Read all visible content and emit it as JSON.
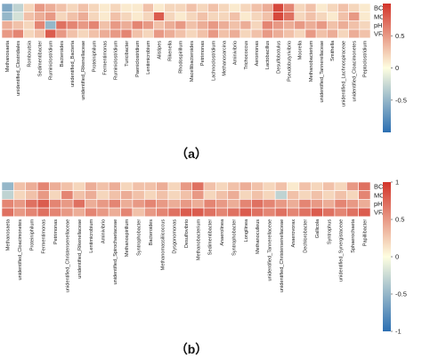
{
  "panels": [
    {
      "label": "（a）",
      "chart_data": {
        "type": "heatmap",
        "title": "",
        "xlabel": "",
        "ylabel": "",
        "rows": [
          "BC",
          "MC",
          "pH",
          "VFA"
        ],
        "columns": [
          "Methanosaeta",
          "unidentified_Clostridiales",
          "Romboutsia",
          "Sedimentibacter",
          "Ruminiclostridium",
          "Bacteroides",
          "unidentified_Bacteria",
          "unidentified_Rikenellaceae",
          "Proteiniphilum",
          "Fermentimonas",
          "Ruminiclostridium",
          "Turicibacter",
          "Paeniclostridium",
          "Lentimicrobium",
          "Alistipes",
          "Rikenella",
          "Rhodospirillum",
          "Macellibacteroides",
          "Petrimonas",
          "Lachnoclostridium",
          "Methanosarcina",
          "Aminivibrio",
          "Trichococcus",
          "Aeromonas",
          "Lactobacillus",
          "Desulfobotulus",
          "Pseudobutyrivibrio",
          "Moorella",
          "Methanobacterium",
          "unidentified_Tannerellaceae",
          "Smithella",
          "unidentified_Lachnospiraceae",
          "unidentified_Cloacimonetes",
          "Peptoclostridium"
        ],
        "values": [
          [
            -0.6,
            -0.3,
            0.2,
            0.5,
            0.4,
            0.3,
            0.2,
            0.3,
            0.2,
            0.1,
            0.2,
            0.1,
            0.1,
            0.3,
            0.1,
            0.2,
            0.2,
            0.3,
            0.2,
            0.3,
            0.2,
            0.1,
            0.2,
            0.3,
            0.4,
            0.9,
            0.6,
            0.2,
            0.3,
            0.1,
            0.2,
            0.3,
            0.2,
            0.1
          ],
          [
            -0.5,
            -0.2,
            0.3,
            0.4,
            0.5,
            0.2,
            0.3,
            0.4,
            0.2,
            0.1,
            0.3,
            0.2,
            0.1,
            0.2,
            0.8,
            0.2,
            0.1,
            0.2,
            0.3,
            0.2,
            0.2,
            0.3,
            0.1,
            0.2,
            0.3,
            0.9,
            0.7,
            0.2,
            0.3,
            0.2,
            0.1,
            0.3,
            0.5,
            0.1
          ],
          [
            0.4,
            0.3,
            0.2,
            0.6,
            -0.5,
            0.7,
            0.6,
            0.5,
            0.6,
            0.3,
            0.5,
            0.4,
            0.6,
            0.5,
            0.3,
            0.4,
            0.5,
            0.3,
            0.4,
            0.5,
            0.4,
            0.3,
            0.4,
            0.2,
            0.6,
            0.5,
            0.4,
            0.5,
            0.4,
            0.5,
            0.3,
            0.4,
            0.3,
            0.2
          ],
          [
            0.5,
            0.6,
            0.2,
            0.3,
            0.8,
            0.5,
            0.3,
            0.2,
            0.3,
            0.4,
            0.5,
            0.6,
            0.3,
            0.2,
            0.5,
            0.4,
            0.3,
            0.2,
            0.3,
            0.5,
            0.3,
            0.4,
            0.2,
            0.3,
            0.5,
            0.4,
            0.3,
            0.2,
            0.5,
            0.3,
            0.4,
            0.2,
            0.4,
            0.3
          ]
        ],
        "colorbar": {
          "ticks": [
            0.5,
            0,
            -0.5
          ],
          "range": [
            -1,
            1
          ]
        },
        "colors": {
          "low": "#2c6fb2",
          "mid": "#fefee0",
          "high": "#d2342a"
        }
      }
    },
    {
      "label": "（b）",
      "chart_data": {
        "type": "heatmap",
        "title": "",
        "xlabel": "",
        "ylabel": "",
        "rows": [
          "BC",
          "MC",
          "pH",
          "VFA"
        ],
        "columns": [
          "Methanosaeta",
          "unidentified_Cloacimonetes",
          "Proteiniphilum",
          "Fermentimonas",
          "Petrimonas",
          "unidentified_Christensenellaceae",
          "unidentified_Rikenellaceae",
          "Lentimicrobium",
          "Aminivibrio",
          "unidentified_Spirochaetaceae",
          "Methanospirillum",
          "Syntrophobacter",
          "Bacteroides",
          "Methanomassiliicoccus",
          "Dysgonomonas",
          "Desulfovibrio",
          "Methanobacterium",
          "Sedimentibacter",
          "Anaerolinea",
          "Syntrophobacter",
          "Longilinea",
          "Methanoculleus",
          "unidentified_Tannerellaceae",
          "unidentified_Christensenellaceae",
          "Anaerovorax",
          "Dechlorobacter",
          "Gallicola",
          "Syntrophus",
          "unidentified_Synergistaceae",
          "Sphaerochaeta",
          "Papillibacter"
        ],
        "values": [
          [
            -0.5,
            0.3,
            0.4,
            0.6,
            0.4,
            0.3,
            0.2,
            0.4,
            0.3,
            0.4,
            0.2,
            0.3,
            0.3,
            0.4,
            0.2,
            0.5,
            0.7,
            0.3,
            0.2,
            0.3,
            0.4,
            0.3,
            0.2,
            0.3,
            0.1,
            0.3,
            0.2,
            0.3,
            0.2,
            0.5,
            0.7
          ],
          [
            -0.3,
            0.2,
            0.3,
            0.5,
            0.2,
            0.6,
            0.3,
            0.4,
            0.2,
            0.3,
            0.4,
            0.3,
            0.2,
            0.3,
            0.2,
            0.3,
            0.5,
            0.2,
            0.3,
            0.4,
            0.2,
            0.3,
            0.2,
            -0.3,
            0.3,
            0.2,
            0.3,
            0.2,
            0.3,
            0.2,
            0.6
          ],
          [
            0.6,
            0.5,
            0.7,
            0.8,
            0.6,
            0.5,
            0.7,
            0.4,
            0.5,
            0.6,
            0.4,
            0.5,
            0.6,
            0.5,
            0.4,
            0.5,
            0.4,
            0.6,
            0.5,
            0.4,
            0.6,
            0.7,
            0.6,
            0.5,
            0.4,
            0.6,
            0.5,
            0.4,
            0.6,
            0.5,
            0.4
          ],
          [
            0.7,
            0.5,
            0.6,
            0.7,
            0.6,
            0.5,
            0.4,
            0.6,
            0.5,
            0.4,
            0.6,
            0.3,
            0.5,
            0.6,
            0.7,
            0.8,
            0.8,
            0.7,
            0.6,
            0.7,
            0.8,
            0.7,
            0.6,
            0.7,
            0.6,
            0.7,
            0.8,
            0.7,
            0.6,
            0.7,
            0.8
          ]
        ],
        "colorbar": {
          "ticks": [
            1,
            0.5,
            0,
            -0.5,
            -1
          ],
          "range": [
            -1,
            1
          ]
        },
        "colors": {
          "low": "#2c6fb2",
          "mid": "#fefee0",
          "high": "#d2342a"
        }
      }
    }
  ]
}
